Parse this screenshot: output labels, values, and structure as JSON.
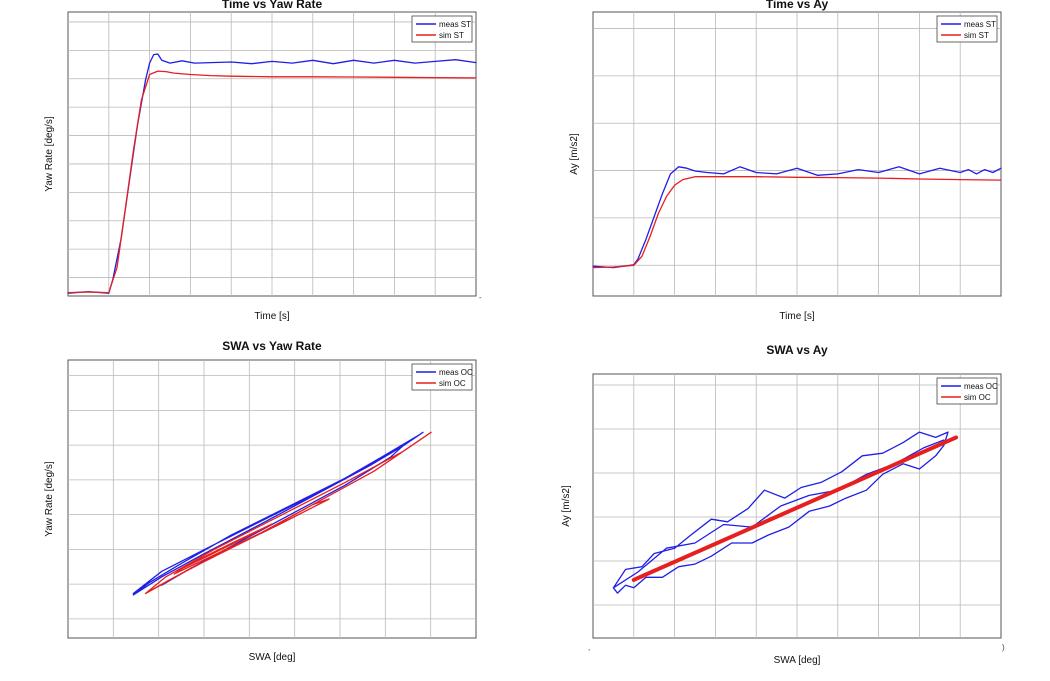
{
  "page": {
    "background": "#ffffff",
    "grid_color": "#b9b9b9"
  },
  "stray_marks": [
    ",",
    ")",
    "-"
  ],
  "chart_data": [
    {
      "id": "time-vs-yaw-rate",
      "type": "line",
      "title": "Time vs Yaw Rate",
      "xlabel": "Time [s]",
      "ylabel": "Yaw Rate [deg/s]",
      "xlim": [
        0,
        10
      ],
      "ylim": [
        0,
        10
      ],
      "grid": true,
      "legend": "top-right",
      "series": [
        {
          "name": "meas ST",
          "color": "#1f1fe6",
          "x": [
            0,
            0.5,
            1.0,
            1.1,
            1.3,
            1.5,
            1.7,
            1.9,
            2.0,
            2.1,
            2.2,
            2.3,
            2.5,
            2.8,
            3.1,
            3.5,
            4.0,
            4.5,
            5.0,
            5.5,
            6.0,
            6.5,
            7.0,
            7.5,
            8.0,
            8.5,
            9.0,
            9.5,
            10.0
          ],
          "y": [
            0.1,
            0.15,
            0.1,
            0.6,
            2.0,
            4.0,
            6.0,
            7.6,
            8.2,
            8.5,
            8.52,
            8.3,
            8.2,
            8.28,
            8.2,
            8.22,
            8.24,
            8.18,
            8.26,
            8.2,
            8.3,
            8.18,
            8.3,
            8.2,
            8.3,
            8.2,
            8.26,
            8.32,
            8.22
          ]
        },
        {
          "name": "sim ST",
          "color": "#e61f1f",
          "x": [
            0,
            0.5,
            1.0,
            1.2,
            1.4,
            1.6,
            1.8,
            2.0,
            2.2,
            2.4,
            2.6,
            3.0,
            3.5,
            4.0,
            5.0,
            6.0,
            7.0,
            8.0,
            9.0,
            10.0
          ],
          "y": [
            0.12,
            0.14,
            0.12,
            1.0,
            3.0,
            5.1,
            6.9,
            7.8,
            7.92,
            7.9,
            7.85,
            7.8,
            7.76,
            7.74,
            7.72,
            7.72,
            7.71,
            7.7,
            7.69,
            7.68
          ]
        }
      ]
    },
    {
      "id": "time-vs-ay",
      "type": "line",
      "title": "Time vs Ay",
      "xlabel": "Time [s]",
      "ylabel": "Ay [m/s2]",
      "xlim": [
        0,
        10
      ],
      "ylim": [
        0,
        10
      ],
      "grid": true,
      "legend": "top-right",
      "series": [
        {
          "name": "meas ST",
          "color": "#1f1fe6",
          "x": [
            0,
            0.5,
            1.0,
            1.1,
            1.3,
            1.5,
            1.7,
            1.9,
            2.1,
            2.3,
            2.5,
            2.8,
            3.2,
            3.6,
            4.0,
            4.5,
            5.0,
            5.5,
            6.0,
            6.5,
            7.0,
            7.5,
            8.0,
            8.5,
            9.0,
            9.2,
            9.4,
            9.6,
            9.8,
            10.0
          ],
          "y": [
            1.05,
            1.0,
            1.1,
            1.3,
            2.0,
            2.8,
            3.6,
            4.3,
            4.55,
            4.5,
            4.4,
            4.35,
            4.3,
            4.55,
            4.35,
            4.3,
            4.5,
            4.25,
            4.3,
            4.45,
            4.35,
            4.55,
            4.3,
            4.5,
            4.35,
            4.45,
            4.3,
            4.45,
            4.35,
            4.5
          ]
        },
        {
          "name": "sim ST",
          "color": "#e61f1f",
          "x": [
            0,
            0.5,
            1.0,
            1.2,
            1.4,
            1.6,
            1.8,
            2.0,
            2.2,
            2.5,
            3.0,
            4.0,
            5.0,
            6.0,
            7.0,
            8.0,
            9.0,
            10.0
          ],
          "y": [
            1.0,
            1.02,
            1.08,
            1.4,
            2.1,
            2.9,
            3.5,
            3.9,
            4.1,
            4.2,
            4.2,
            4.2,
            4.18,
            4.17,
            4.15,
            4.12,
            4.1,
            4.08
          ]
        }
      ]
    },
    {
      "id": "swa-vs-yaw-rate",
      "type": "line",
      "title": "SWA vs Yaw Rate",
      "xlabel": "SWA [deg]",
      "ylabel": "Yaw Rate [deg/s]",
      "xlim": [
        0,
        10
      ],
      "ylim": [
        0,
        10
      ],
      "grid": true,
      "legend": "top-right",
      "series": [
        {
          "name": "meas OC",
          "color": "#1f1fe6",
          "x": [
            1.6,
            2.3,
            3.5,
            5.0,
            6.5,
            7.8,
            8.6,
            8.7,
            8.2,
            7.0,
            5.5,
            4.0,
            2.8,
            2.0,
            1.6,
            2.3,
            3.3,
            4.6,
            6.0,
            7.4,
            8.2,
            7.9,
            6.8,
            5.4,
            4.0,
            3.0,
            2.3
          ],
          "y": [
            1.6,
            2.4,
            3.3,
            4.4,
            5.5,
            6.6,
            7.3,
            7.4,
            6.9,
            5.9,
            4.8,
            3.7,
            2.7,
            2.0,
            1.55,
            2.2,
            3.0,
            4.0,
            5.1,
            6.2,
            6.9,
            6.5,
            5.5,
            4.4,
            3.3,
            2.5,
            1.9
          ]
        },
        {
          "name": "sim OC",
          "color": "#e61f1f",
          "x": [
            1.9,
            3.0,
            4.5,
            6.0,
            7.5,
            8.9,
            8.2,
            6.8,
            5.2,
            3.6,
            2.4,
            1.9,
            2.5,
            3.8,
            5.2,
            6.4,
            6.0,
            4.9,
            3.6,
            2.6,
            2.9,
            4.0,
            5.0,
            4.6,
            3.5,
            2.8
          ],
          "y": [
            1.6,
            2.5,
            3.6,
            4.8,
            6.0,
            7.4,
            6.7,
            5.6,
            4.4,
            3.2,
            2.2,
            1.6,
            2.1,
            3.1,
            4.1,
            5.0,
            4.8,
            3.9,
            3.0,
            2.3,
            2.6,
            3.4,
            4.1,
            3.8,
            3.0,
            2.5
          ]
        }
      ]
    },
    {
      "id": "swa-vs-ay",
      "type": "line",
      "title": "SWA vs Ay",
      "xlabel": "SWA [deg]",
      "ylabel": "Ay [m/s2]",
      "xlim": [
        0,
        10
      ],
      "ylim": [
        0,
        10
      ],
      "grid": true,
      "legend": "top-right",
      "series": [
        {
          "name": "meas OC",
          "color": "#1f1fe6",
          "x": [
            0.5,
            0.8,
            1.2,
            1.5,
            2.0,
            2.4,
            2.9,
            3.3,
            3.8,
            4.2,
            4.7,
            5.1,
            5.6,
            6.1,
            6.6,
            7.1,
            7.6,
            8.0,
            8.4,
            8.7,
            8.6,
            8.4,
            8.0,
            7.6,
            7.1,
            6.7,
            6.2,
            5.8,
            5.3,
            4.8,
            4.3,
            3.9,
            3.4,
            2.9,
            2.5,
            2.1,
            1.7,
            1.3,
            1.0,
            0.8,
            0.6,
            0.5,
            1.1,
            1.8,
            2.5,
            3.2,
            3.9,
            4.6,
            5.3,
            6.0,
            6.7,
            7.4,
            8.1,
            8.6
          ],
          "y": [
            1.9,
            2.6,
            2.7,
            3.2,
            3.4,
            3.9,
            4.5,
            4.4,
            4.9,
            5.6,
            5.3,
            5.7,
            5.9,
            6.3,
            6.9,
            7.0,
            7.4,
            7.8,
            7.6,
            7.8,
            7.3,
            6.9,
            6.4,
            6.6,
            6.2,
            5.6,
            5.3,
            5.0,
            4.8,
            4.2,
            3.9,
            3.6,
            3.6,
            3.1,
            2.8,
            2.7,
            2.3,
            2.3,
            1.9,
            2.0,
            1.7,
            1.9,
            2.5,
            3.4,
            3.6,
            4.3,
            4.2,
            5.0,
            5.4,
            5.6,
            6.2,
            6.6,
            7.2,
            7.5
          ]
        },
        {
          "name": "sim OC",
          "color": "#e61f1f",
          "x": [
            1.0,
            8.9
          ],
          "y": [
            2.2,
            7.6
          ]
        }
      ]
    }
  ]
}
